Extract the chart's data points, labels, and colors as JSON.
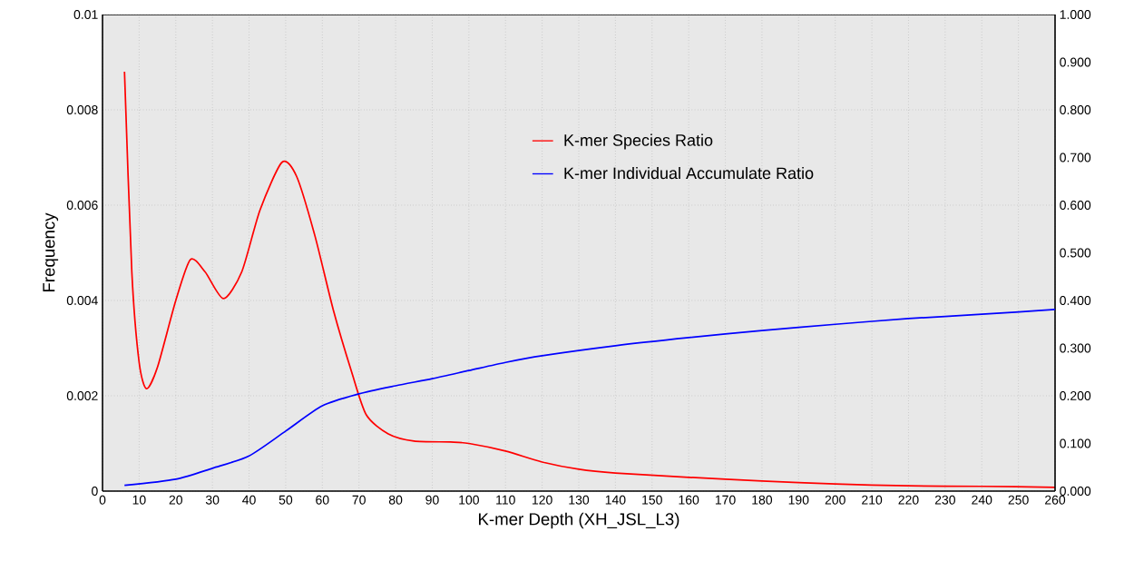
{
  "chart_data": {
    "type": "line",
    "xlabel": "K-mer Depth (XH_JSL_L3)",
    "ylabel": "Frequency",
    "xlim": [
      0,
      260
    ],
    "xticks": [
      0,
      10,
      20,
      30,
      40,
      50,
      60,
      70,
      80,
      90,
      100,
      110,
      120,
      130,
      140,
      150,
      160,
      170,
      180,
      190,
      200,
      210,
      220,
      230,
      240,
      250,
      260
    ],
    "ylim": [
      0,
      0.01
    ],
    "yticks": [
      0,
      0.002,
      0.004,
      0.006,
      0.008,
      0.01
    ],
    "y2lim": [
      0,
      1
    ],
    "y2ticks": [
      {
        "value": 0,
        "label": "0.000"
      },
      {
        "value": 0.1,
        "label": "0.100"
      },
      {
        "value": 0.2,
        "label": "0.200"
      },
      {
        "value": 0.3,
        "label": "0.300"
      },
      {
        "value": 0.4,
        "label": "0.400"
      },
      {
        "value": 0.5,
        "label": "0.500"
      },
      {
        "value": 0.6,
        "label": "0.600"
      },
      {
        "value": 0.7,
        "label": "0.700"
      },
      {
        "value": 0.8,
        "label": "0.800"
      },
      {
        "value": 0.9,
        "label": "0.900"
      },
      {
        "value": 1,
        "label": "1.000"
      }
    ],
    "grid": true,
    "legend": "top",
    "marker": "none",
    "line_style": "solid",
    "series": [
      {
        "name": "K-mer Species Ratio",
        "color": "#ff0000",
        "x": [
          6,
          8,
          10,
          12,
          15,
          20,
          24,
          28,
          33,
          38,
          43,
          49,
          53,
          58,
          63,
          68,
          72,
          78,
          85,
          95,
          100,
          110,
          120,
          130,
          140,
          160,
          180,
          200,
          220,
          240,
          260
        ],
        "values": [
          0.0088,
          0.0046,
          0.0027,
          0.00215,
          0.0026,
          0.004,
          0.00486,
          0.0046,
          0.00404,
          0.0046,
          0.0059,
          0.0069,
          0.0066,
          0.00535,
          0.0038,
          0.0025,
          0.0016,
          0.0012,
          0.00105,
          0.00103,
          0.001,
          0.00084,
          0.00061,
          0.00046,
          0.00038,
          0.00029,
          0.00021,
          0.00015,
          0.00011,
          0.0001,
          8e-05
        ]
      },
      {
        "name": "K-mer Individual Accumulate Ratio",
        "color": "#0000ff",
        "axis": "y2",
        "x": [
          6,
          20,
          30,
          40,
          50,
          60,
          70,
          80,
          90,
          100,
          110,
          120,
          140,
          160,
          180,
          200,
          220,
          240,
          260
        ],
        "values": [
          0.012,
          0.025,
          0.048,
          0.074,
          0.126,
          0.179,
          0.204,
          0.221,
          0.236,
          0.253,
          0.27,
          0.284,
          0.305,
          0.322,
          0.337,
          0.35,
          0.362,
          0.371,
          0.381
        ]
      }
    ]
  }
}
